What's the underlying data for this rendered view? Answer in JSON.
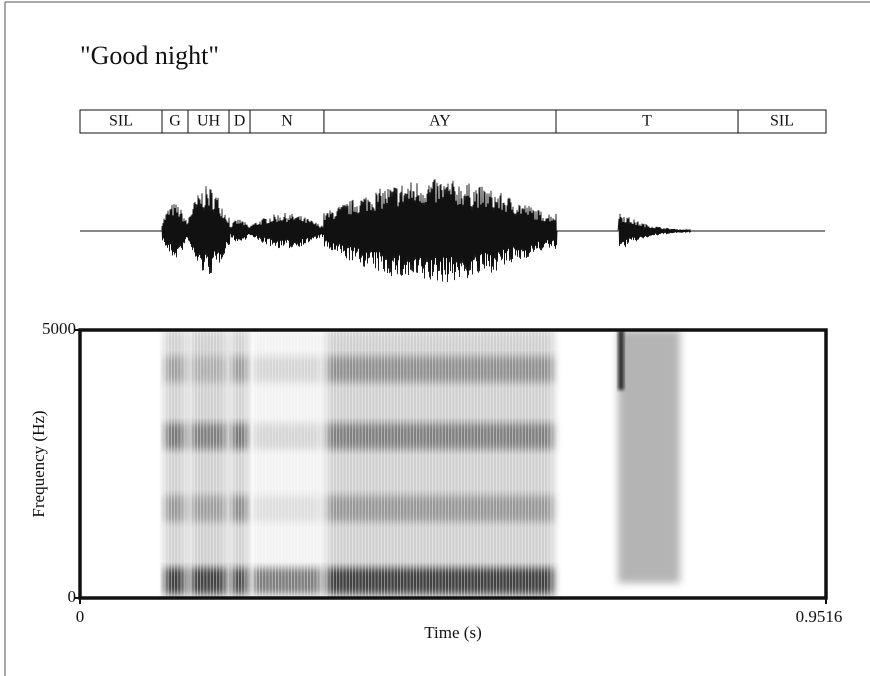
{
  "chart_data": {
    "type": "spectrogram",
    "title": "\"Good night\"",
    "segments": [
      {
        "label": "SIL",
        "start": 0,
        "end": 0.1046
      },
      {
        "label": "G",
        "start": 0.1046,
        "end": 0.1378
      },
      {
        "label": "UH",
        "start": 0.1378,
        "end": 0.1901
      },
      {
        "label": "D",
        "start": 0.1901,
        "end": 0.2169
      },
      {
        "label": "N",
        "start": 0.2169,
        "end": 0.3112
      },
      {
        "label": "AY",
        "start": 0.3112,
        "end": 0.6072
      },
      {
        "label": "T",
        "start": 0.6072,
        "end": 0.8394
      },
      {
        "label": "SIL",
        "start": 0.8394,
        "end": 0.9516
      }
    ],
    "xlim": [
      0,
      0.9516
    ],
    "xticks": [
      0,
      0.9516
    ],
    "ylim": [
      0,
      5000
    ],
    "yticks": [
      0,
      5000
    ],
    "xlabel": "Time (s)",
    "ylabel": "Frequency (Hz)"
  }
}
